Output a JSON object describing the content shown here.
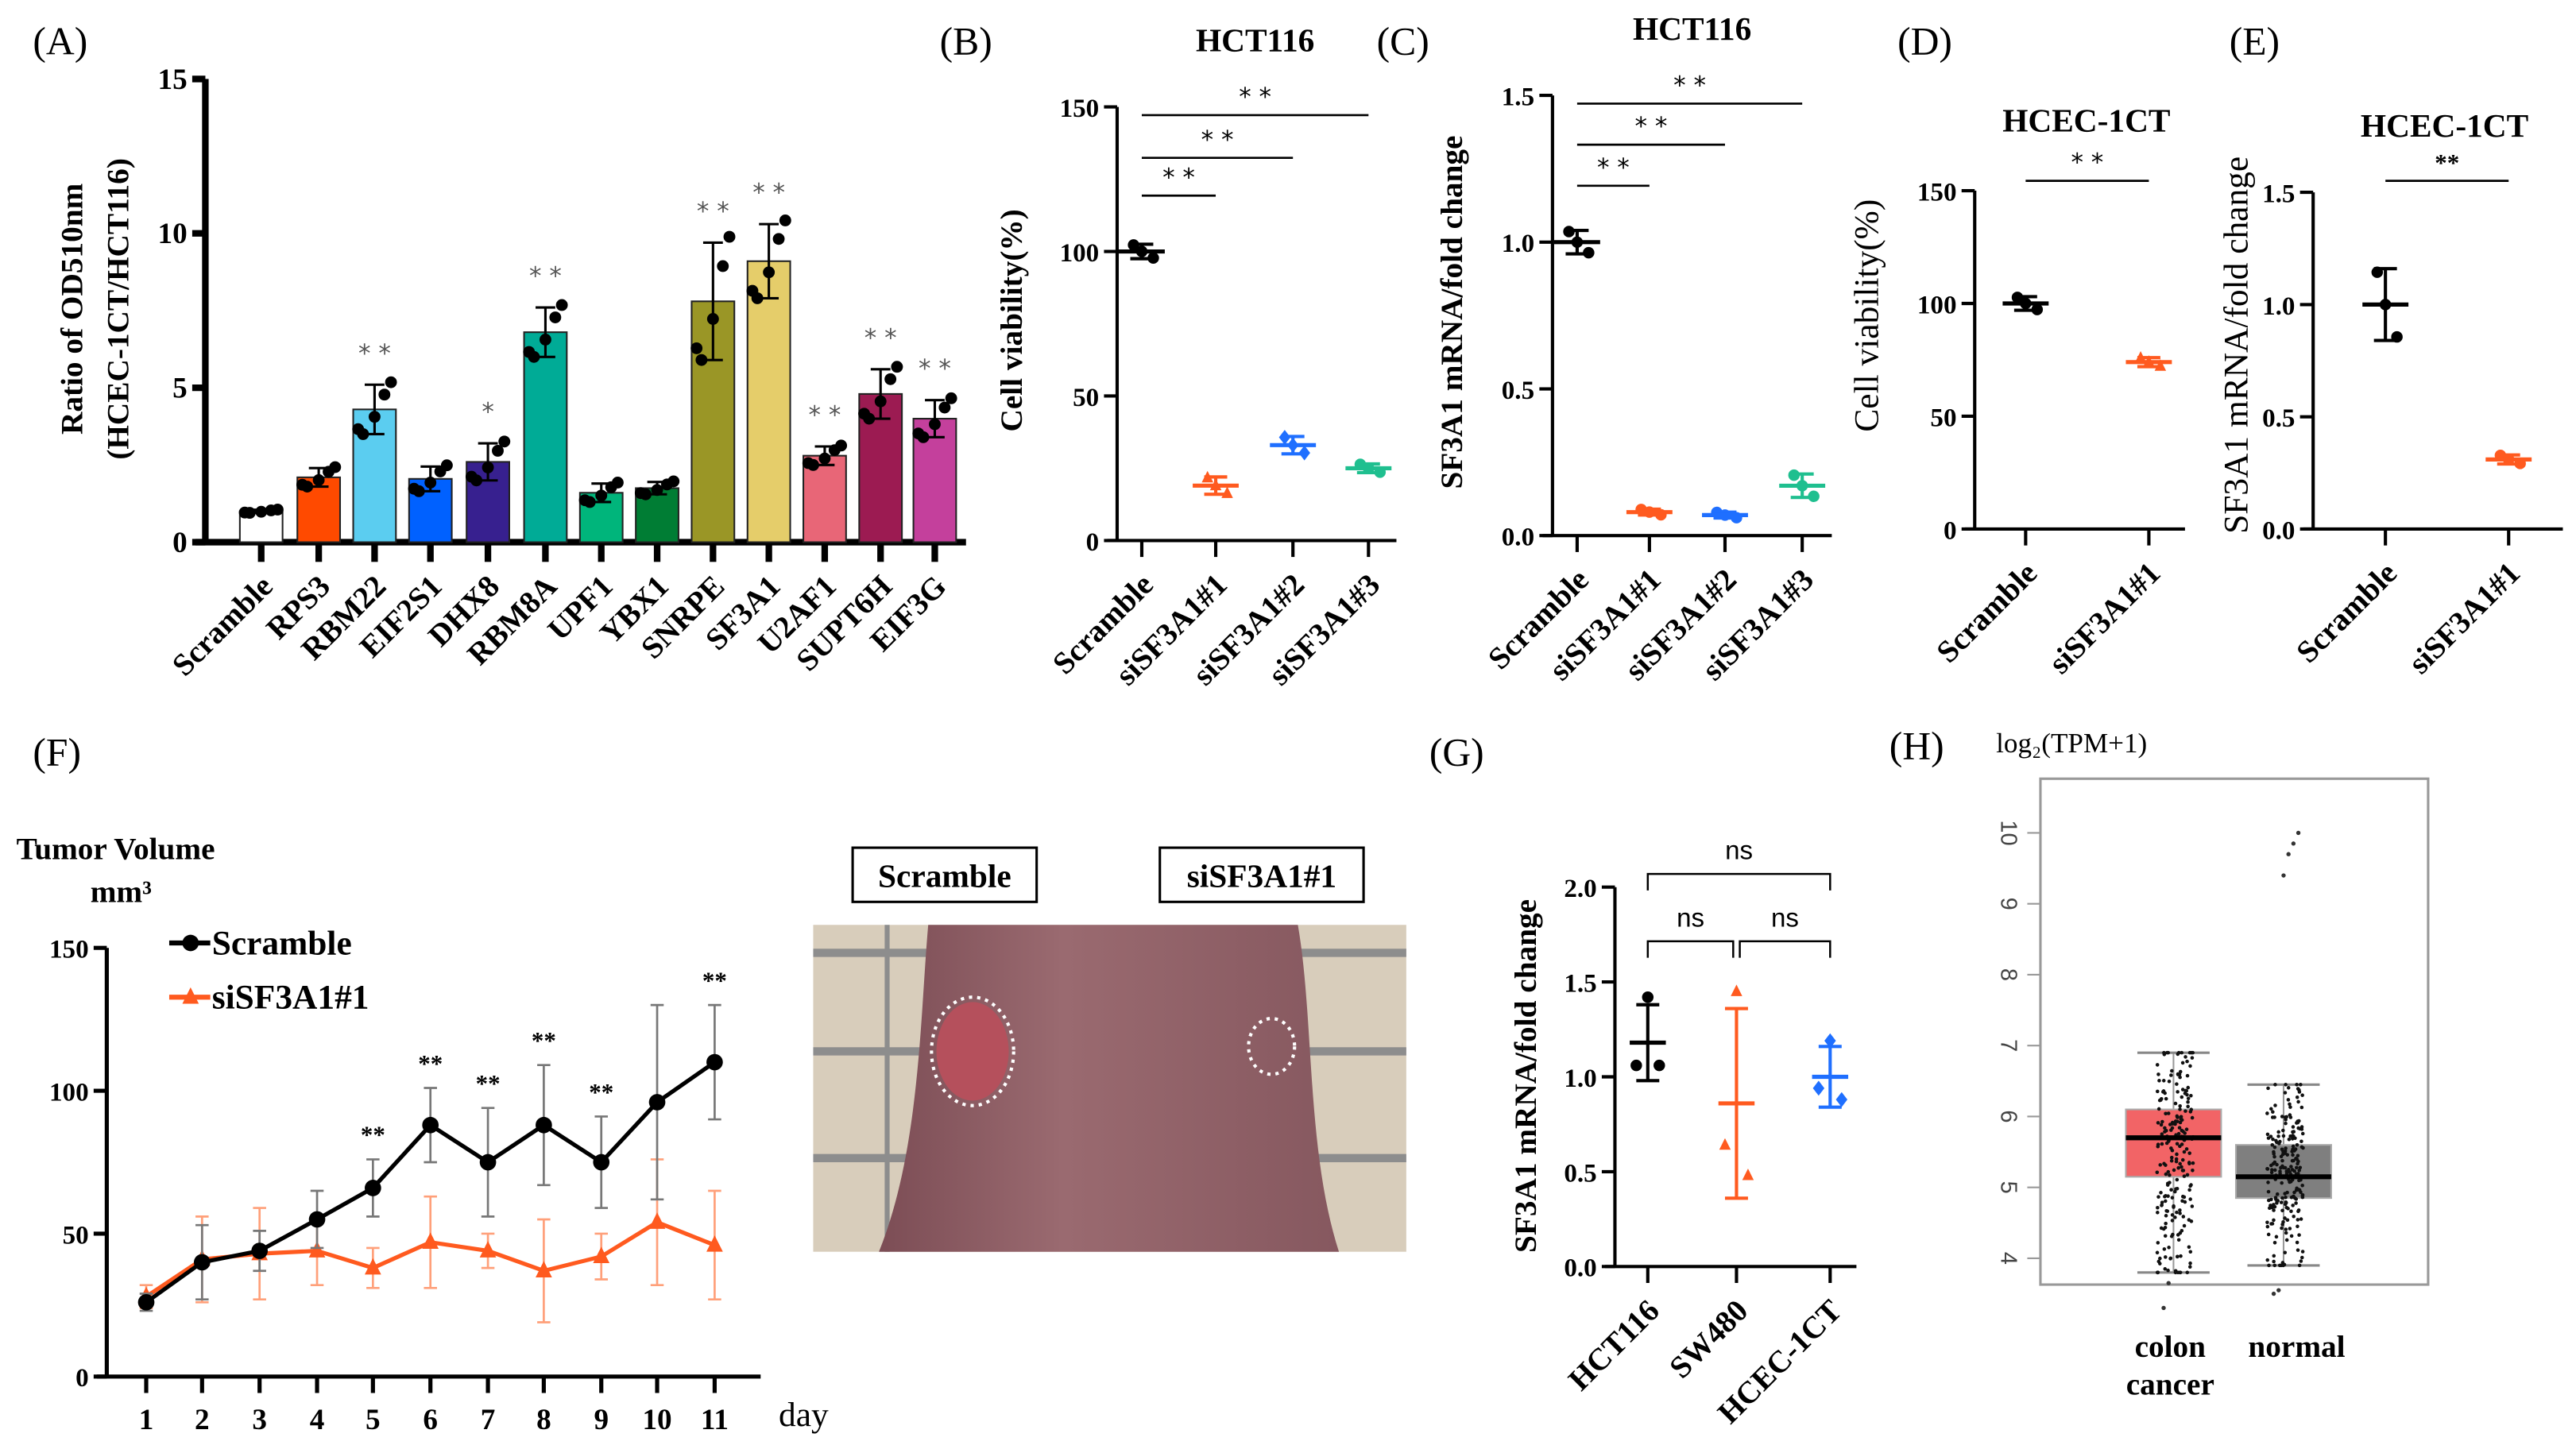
{
  "chart_data": [
    {
      "id": "A",
      "panel_label": "(A)",
      "type": "bar",
      "title": "",
      "ylabel": [
        "Ratio of OD510nm",
        "(HCEC-1CT/HCT116)"
      ],
      "ylim": [
        0,
        15
      ],
      "yticks": [
        0,
        5,
        10,
        15
      ],
      "ytick_labels": [
        "0",
        "5",
        "10",
        "15"
      ],
      "categories": [
        "Scramble",
        "RPS3",
        "RBM22",
        "EIF2S1",
        "DHX8",
        "RBM8A",
        "UPF1",
        "YBX1",
        "SNRPE",
        "SF3A1",
        "U2AF1",
        "SUPT6H",
        "EIF3G"
      ],
      "values": [
        1.0,
        2.1,
        4.3,
        2.05,
        2.6,
        6.8,
        1.6,
        1.75,
        7.8,
        9.1,
        2.8,
        4.8,
        4.0
      ],
      "errors": [
        0.05,
        0.3,
        0.8,
        0.4,
        0.6,
        0.8,
        0.3,
        0.2,
        1.9,
        1.2,
        0.3,
        0.8,
        0.6
      ],
      "colors": [
        "#ffffff",
        "#ff4a00",
        "#5bcdf0",
        "#0061ff",
        "#37208f",
        "#00ab96",
        "#00b57b",
        "#007d34",
        "#9a9626",
        "#e5cd6a",
        "#e86677",
        "#9c1b52",
        "#c4409c"
      ],
      "n_points": 5,
      "stars": [
        "",
        "",
        "* *",
        "",
        "*",
        "* *",
        "",
        "",
        "* *",
        "* *",
        "* *",
        "* *",
        "* *"
      ]
    },
    {
      "id": "B",
      "panel_label": "(B)",
      "type": "dot",
      "title": "HCT116",
      "ylabel": [
        "Cell viability(%)"
      ],
      "ylim": [
        0,
        150
      ],
      "yticks": [
        0,
        50,
        100,
        150
      ],
      "ytick_labels": [
        "0",
        "50",
        "100",
        "150"
      ],
      "categories": [
        "Scramble",
        "siSF3A1#1",
        "siSF3A1#2",
        "siSF3A1#3"
      ],
      "values": [
        100,
        19,
        33,
        25
      ],
      "errors": [
        2.5,
        3,
        3,
        1.5
      ],
      "colors": [
        "#000000",
        "#ff5a1f",
        "#1f6fff",
        "#1fbf8f"
      ],
      "markers": [
        "circle",
        "triangle",
        "diamond",
        "circle"
      ],
      "n_points": 3,
      "significance": [
        {
          "from": 0,
          "to": 1,
          "label": "* *"
        },
        {
          "from": 0,
          "to": 2,
          "label": "* *"
        },
        {
          "from": 0,
          "to": 3,
          "label": "* *"
        }
      ]
    },
    {
      "id": "C",
      "panel_label": "(C)",
      "type": "dot",
      "title": "HCT116",
      "ylabel": [
        "SF3A1 mRNA/fold change"
      ],
      "ylim": [
        0,
        1.5
      ],
      "yticks": [
        0,
        0.5,
        1.0,
        1.5
      ],
      "ytick_labels": [
        "0.0",
        "0.5",
        "1.0",
        "1.5"
      ],
      "categories": [
        "Scramble",
        "siSF3A1#1",
        "siSF3A1#2",
        "siSF3A1#3"
      ],
      "values": [
        1.0,
        0.08,
        0.07,
        0.17
      ],
      "errors": [
        0.04,
        0.01,
        0.01,
        0.04
      ],
      "colors": [
        "#000000",
        "#ff5a1f",
        "#1f6fff",
        "#1fbf8f"
      ],
      "markers": [
        "circle",
        "circle",
        "circle",
        "circle"
      ],
      "n_points": 3,
      "significance": [
        {
          "from": 0,
          "to": 1,
          "label": "* *"
        },
        {
          "from": 0,
          "to": 2,
          "label": "* *"
        },
        {
          "from": 0,
          "to": 3,
          "label": "* *"
        }
      ]
    },
    {
      "id": "D",
      "panel_label": "(D)",
      "type": "dot",
      "title": "HCEC-1CT",
      "ylabel": [
        "Cell viability(%)"
      ],
      "ylim": [
        0,
        150
      ],
      "yticks": [
        0,
        50,
        100,
        150
      ],
      "ytick_labels": [
        "0",
        "50",
        "100",
        "150"
      ],
      "categories": [
        "Scramble",
        "siSF3A1#1"
      ],
      "values": [
        100,
        74
      ],
      "errors": [
        3,
        2
      ],
      "colors": [
        "#000000",
        "#ff5a1f"
      ],
      "markers": [
        "circle",
        "triangle"
      ],
      "n_points": 3,
      "significance": [
        {
          "from": 0,
          "to": 1,
          "label": "* *"
        }
      ]
    },
    {
      "id": "E",
      "panel_label": "(E)",
      "type": "dot",
      "title": "HCEC-1CT",
      "ylabel": [
        "SF3A1 mRNA/fold change"
      ],
      "ylim": [
        0,
        1.5
      ],
      "yticks": [
        0,
        0.5,
        1.0,
        1.5
      ],
      "ytick_labels": [
        "0.0",
        "0.5",
        "1.0",
        "1.5"
      ],
      "categories": [
        "Scramble",
        "siSF3A1#1"
      ],
      "values": [
        1.0,
        0.31
      ],
      "errors": [
        0.16,
        0.02
      ],
      "colors": [
        "#000000",
        "#ff5a1f"
      ],
      "markers": [
        "circle",
        "circle"
      ],
      "n_points": 3,
      "significance": [
        {
          "from": 0,
          "to": 1,
          "label": "**"
        }
      ]
    },
    {
      "id": "F",
      "panel_label": "(F)",
      "type": "line",
      "ylabel": [
        "Tumor Volume",
        "mm³"
      ],
      "xlabel": "day",
      "ylim": [
        0,
        150
      ],
      "yticks": [
        0,
        50,
        100,
        150
      ],
      "ytick_labels": [
        "0",
        "50",
        "100",
        "150"
      ],
      "x": [
        1,
        2,
        3,
        4,
        5,
        6,
        7,
        8,
        9,
        10,
        11
      ],
      "xtick_labels": [
        "1",
        "2",
        "3",
        "4",
        "5",
        "6",
        "7",
        "8",
        "9",
        "10",
        "11"
      ],
      "series": [
        {
          "name": "Scramble",
          "color": "#000000",
          "marker": "circle",
          "values": [
            26,
            40,
            44,
            55,
            66,
            88,
            75,
            88,
            75,
            96,
            110
          ],
          "errors": [
            3,
            13,
            7,
            10,
            10,
            13,
            19,
            21,
            16,
            34,
            20
          ]
        },
        {
          "name": "siSF3A1#1",
          "color": "#ff5a1f",
          "marker": "triangle",
          "values": [
            28,
            41,
            43,
            44,
            38,
            47,
            44,
            37,
            42,
            54,
            46
          ],
          "errors": [
            4,
            15,
            16,
            12,
            7,
            16,
            6,
            18,
            8,
            22,
            19
          ]
        }
      ],
      "stars": [
        "",
        "",
        "",
        "",
        "**",
        "**",
        "**",
        "**",
        "**",
        "",
        "**"
      ],
      "legend": "top-left"
    },
    {
      "id": "G",
      "panel_label": "(G)",
      "type": "dot",
      "ylabel": [
        "SF3A1 mRNA/fold change"
      ],
      "ylim": [
        0,
        2.0
      ],
      "yticks": [
        0,
        0.5,
        1.0,
        1.5,
        2.0
      ],
      "ytick_labels": [
        "0.0",
        "0.5",
        "1.0",
        "1.5",
        "2.0"
      ],
      "categories": [
        "HCT116",
        "SW480",
        "HCEC-1CT"
      ],
      "values": [
        1.18,
        0.86,
        1.0
      ],
      "errors": [
        0.2,
        0.5,
        0.16
      ],
      "points": [
        [
          1.42,
          1.06,
          1.06
        ],
        [
          1.45,
          0.64,
          0.48
        ],
        [
          1.19,
          0.94,
          0.88
        ]
      ],
      "colors": [
        "#000000",
        "#ff5a1f",
        "#1f6fff"
      ],
      "markers": [
        "circle",
        "triangle",
        "diamond"
      ],
      "significance": [
        {
          "from": 0,
          "to": 1,
          "label": "ns"
        },
        {
          "from": 1,
          "to": 2,
          "label": "ns"
        },
        {
          "from": 0,
          "to": 2,
          "label": "ns"
        }
      ]
    },
    {
      "id": "H",
      "panel_label": "(H)",
      "type": "box",
      "ylabel": [
        "log₂(TPM+1)"
      ],
      "ylim": [
        3,
        10.6
      ],
      "yticks": [
        4,
        5,
        6,
        7,
        8,
        9,
        10
      ],
      "ytick_labels": [
        "4",
        "5",
        "6",
        "7",
        "8",
        "9",
        "10"
      ],
      "categories": [
        "colon cancer",
        "normal"
      ],
      "category_lines": [
        [
          "colon",
          "cancer"
        ],
        [
          "normal"
        ]
      ],
      "boxes": [
        {
          "whisker_low": 3.8,
          "q1": 5.15,
          "median": 5.7,
          "q3": 6.1,
          "whisker_high": 6.9,
          "outliers": [
            3.3,
            3.65
          ],
          "color": "#f26466"
        },
        {
          "whisker_low": 3.9,
          "q1": 4.85,
          "median": 5.15,
          "q3": 5.6,
          "whisker_high": 6.45,
          "outliers": [
            3.5,
            3.55,
            9.4,
            9.7,
            9.85,
            10.0
          ],
          "color": "#7f7f7f"
        }
      ]
    }
  ],
  "photo": {
    "labels": [
      "Scramble",
      "siSF3A1#1"
    ]
  }
}
